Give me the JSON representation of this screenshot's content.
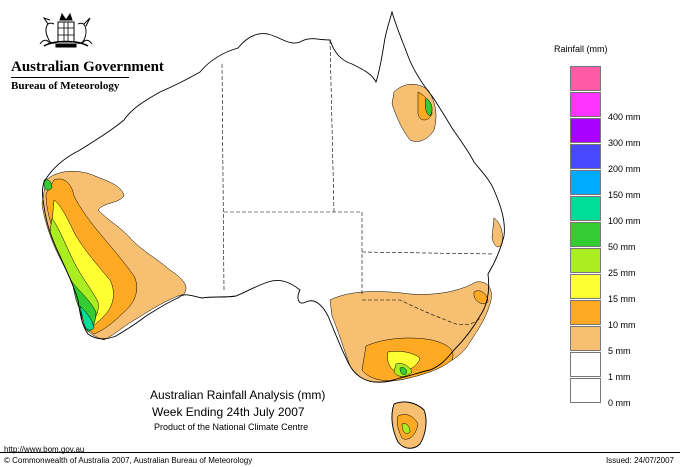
{
  "header": {
    "government": "Australian Government",
    "bureau": "Bureau of Meteorology",
    "logo": "commonwealth-coat-of-arms"
  },
  "legend": {
    "title": "Rainfall (mm)",
    "items": [
      {
        "label": "",
        "color": "#ff5aa6"
      },
      {
        "label": "400 mm",
        "color": "#ff33ff"
      },
      {
        "label": "300 mm",
        "color": "#aa00ff"
      },
      {
        "label": "200 mm",
        "color": "#4848ff"
      },
      {
        "label": "150 mm",
        "color": "#00aaff"
      },
      {
        "label": "100 mm",
        "color": "#00dd99"
      },
      {
        "label": "50 mm",
        "color": "#33cc33"
      },
      {
        "label": "25 mm",
        "color": "#aaee22"
      },
      {
        "label": "15 mm",
        "color": "#ffff33"
      },
      {
        "label": "10 mm",
        "color": "#ffaa22"
      },
      {
        "label": "5 mm",
        "color": "#f7bf72"
      },
      {
        "label": "1 mm",
        "color": "#ffffff"
      },
      {
        "label": "0 mm",
        "color": "#ffffff"
      }
    ]
  },
  "titles": {
    "line1": "Australian Rainfall Analysis (mm)",
    "line2": "Week Ending 24th July 2007",
    "line3": "Product of the National Climate Centre"
  },
  "footer": {
    "url": "http://www.bom.gov.au",
    "copyright": "© Commonwealth of Australia 2007, Australian Bureau of Meteorology",
    "issued": "Issued: 24/07/2007"
  }
}
